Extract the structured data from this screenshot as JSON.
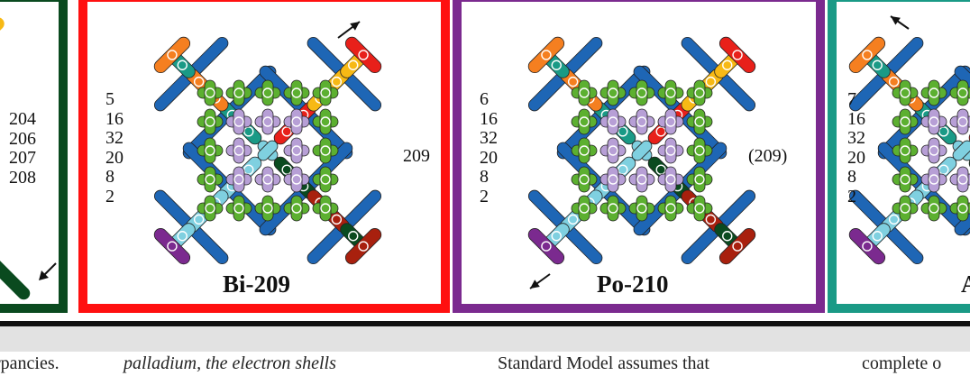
{
  "panels": {
    "left": {
      "numbers": [
        "204",
        "206",
        "207",
        "208"
      ],
      "border_color": "#0a4a1f"
    },
    "bi": {
      "title": "Bi-209",
      "numbers": [
        "5",
        "16",
        "32",
        "20",
        "8",
        "2"
      ],
      "label": "209",
      "border_color": "#ff1010"
    },
    "po": {
      "title": "Po-210",
      "numbers": [
        "6",
        "16",
        "32",
        "20",
        "8",
        "2"
      ],
      "label": "(209)",
      "border_color": "#7b2a8f"
    },
    "right": {
      "title": "A",
      "numbers": [
        "7",
        "16",
        "32",
        "20",
        "8",
        "2"
      ],
      "border_color": "#1a9a86"
    }
  },
  "text_columns": [
    "rpancies.",
    "palladium, the electron shells",
    "Standard Model assumes that",
    "complete o"
  ],
  "colors": {
    "green": "#5cb030",
    "lavender": "#b79fd6",
    "blue": "#1e66b5",
    "cyan": "#7fd0e0",
    "teal": "#1a9a86",
    "orange": "#f57f20",
    "yellow": "#f7b915",
    "red": "#e8201a",
    "purple": "#7b2a8f",
    "darkred": "#a8200e",
    "darkgreen": "#0a4a1f"
  }
}
